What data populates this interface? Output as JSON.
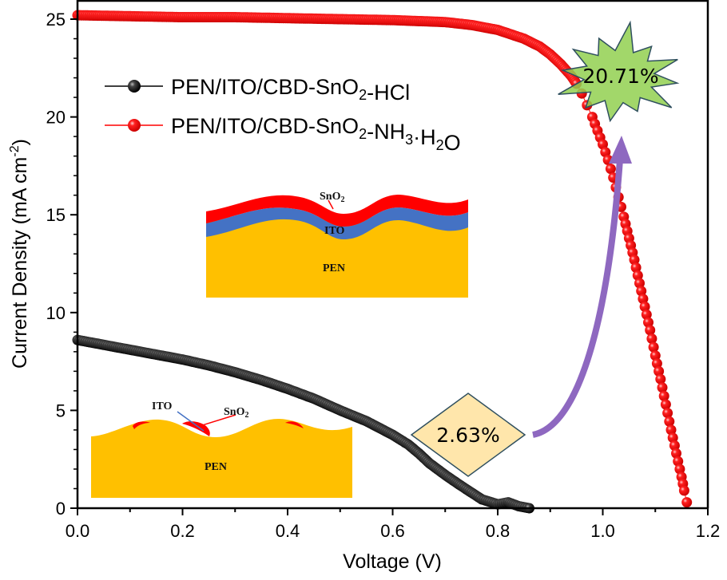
{
  "chart_data": {
    "type": "scatter",
    "title": "",
    "xlabel": "Voltage (V)",
    "ylabel": "Current Density (mA cm-2)",
    "ylabel_parts": {
      "main": "Current Density (mA cm",
      "sup": "-2",
      "close": ")"
    },
    "xlim": [
      0,
      1.2
    ],
    "ylim": [
      0,
      26
    ],
    "xticks": [
      0.0,
      0.2,
      0.4,
      0.6,
      0.8,
      1.0,
      1.2
    ],
    "xtick_labels": [
      "0.0",
      "0.2",
      "0.4",
      "0.6",
      "0.8",
      "1.0",
      "1.2"
    ],
    "yticks": [
      0,
      5,
      10,
      15,
      20,
      25
    ],
    "ytick_labels": [
      "0",
      "5",
      "10",
      "15",
      "20",
      "25"
    ],
    "grid": false,
    "legend_position": "top-left",
    "series": [
      {
        "name": "PEN/ITO/CBD-SnO2-HCl",
        "legend_parts": [
          {
            "t": "PEN/ITO/CBD-SnO"
          },
          {
            "t": "2",
            "sub": true
          },
          {
            "t": "-HCl"
          }
        ],
        "color": "#000000",
        "x": [
          0.0,
          0.05,
          0.1,
          0.15,
          0.2,
          0.25,
          0.3,
          0.35,
          0.4,
          0.45,
          0.5,
          0.55,
          0.6,
          0.63,
          0.65,
          0.67,
          0.7,
          0.73,
          0.75,
          0.77,
          0.8,
          0.82,
          0.84,
          0.86
        ],
        "y": [
          8.6,
          8.35,
          8.1,
          7.85,
          7.6,
          7.3,
          6.95,
          6.55,
          6.1,
          5.6,
          5.0,
          4.45,
          3.75,
          3.25,
          2.8,
          2.3,
          1.7,
          1.15,
          0.8,
          0.45,
          0.2,
          0.3,
          0.1,
          0.0
        ]
      },
      {
        "name": "PEN/ITO/CBD-SnO2-NH3·H2O",
        "legend_parts": [
          {
            "t": "PEN/ITO/CBD-SnO"
          },
          {
            "t": "2",
            "sub": true
          },
          {
            "t": "-NH"
          },
          {
            "t": "3",
            "sub": true
          },
          {
            "t": "·H"
          },
          {
            "t": "2",
            "sub": true
          },
          {
            "t": "O"
          }
        ],
        "color": "#ff0000",
        "x": [
          0.0,
          0.1,
          0.2,
          0.3,
          0.4,
          0.5,
          0.6,
          0.7,
          0.75,
          0.8,
          0.85,
          0.88,
          0.9,
          0.92,
          0.94,
          0.95,
          0.96,
          0.97,
          0.98,
          0.99,
          1.0,
          1.01,
          1.02,
          1.03,
          1.04,
          1.05,
          1.06,
          1.07,
          1.08,
          1.09,
          1.1,
          1.11,
          1.12,
          1.13,
          1.14,
          1.15,
          1.155,
          1.16
        ],
        "y": [
          25.2,
          25.15,
          25.1,
          25.1,
          25.05,
          25.0,
          24.95,
          24.85,
          24.7,
          24.45,
          24.0,
          23.6,
          23.2,
          22.7,
          22.1,
          21.7,
          21.2,
          20.6,
          20.0,
          19.3,
          18.6,
          17.8,
          16.9,
          15.9,
          14.9,
          13.8,
          12.7,
          11.5,
          10.3,
          9.1,
          7.8,
          6.6,
          5.3,
          4.0,
          2.8,
          1.6,
          0.9,
          0.3
        ]
      }
    ],
    "annotations": [
      {
        "text": "20.71%",
        "shape": "starburst",
        "fill": "#92d050",
        "stroke": "#2f4f5f"
      },
      {
        "text": "2.63%",
        "shape": "diamond",
        "fill": "#ffe5a6",
        "stroke": "#2f4f5f"
      },
      {
        "text": "arrow",
        "color": "#8e68c0"
      }
    ],
    "insets": [
      {
        "name": "coated-structure",
        "labels": {
          "top": "SnO2",
          "middle": "ITO",
          "bottom": "PEN"
        },
        "colors": {
          "sno2": "#ff0000",
          "ito": "#4472c4",
          "pen": "#ffc000"
        }
      },
      {
        "name": "uncoated-structure",
        "labels": {
          "ito": "ITO",
          "sno2": "SnO2",
          "pen": "PEN"
        }
      }
    ]
  }
}
